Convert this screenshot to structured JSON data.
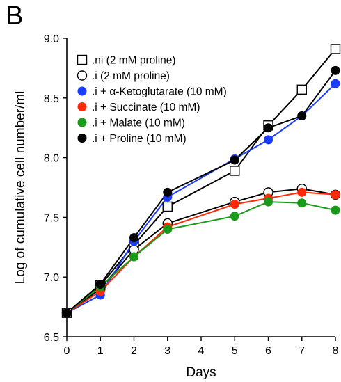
{
  "panel_label": "B",
  "chart_data": {
    "type": "line",
    "title": "",
    "xlabel": "Days",
    "ylabel": "Log of cumulative cell number/ml",
    "xlim": [
      0,
      8
    ],
    "ylim": [
      6.5,
      9.0
    ],
    "xticks": [
      "0",
      "1",
      "2",
      "3",
      "4",
      "5",
      "6",
      "7",
      "8"
    ],
    "yticks": [
      "6.5",
      "7.0",
      "7.5",
      "8.0",
      "8.5",
      "9.0"
    ],
    "grid": false,
    "legend_position": "top-left",
    "series": [
      {
        "name": ".ni (2 mM proline)",
        "marker": "square-open",
        "color": "#000000",
        "line_color": "#000000",
        "x": [
          0,
          1,
          2,
          3,
          5,
          6,
          7,
          8
        ],
        "y": [
          6.7,
          6.93,
          7.27,
          7.59,
          7.89,
          8.27,
          8.57,
          8.91
        ]
      },
      {
        "name": ".i (2 mM proline)",
        "marker": "circle-open",
        "color": "#000000",
        "line_color": "#000000",
        "x": [
          0,
          1,
          2,
          3,
          5,
          6,
          7,
          8
        ],
        "y": [
          6.7,
          6.9,
          7.23,
          7.45,
          7.63,
          7.71,
          7.74,
          7.69
        ]
      },
      {
        "name": ".i + α-Ketoglutarate (10 mM)",
        "marker": "circle",
        "color": "#1a3cff",
        "line_color": "#1a3cff",
        "x": [
          0,
          1,
          2,
          3,
          5,
          6,
          7,
          8
        ],
        "y": [
          6.7,
          6.85,
          7.3,
          7.67,
          7.99,
          8.15,
          8.35,
          8.62
        ]
      },
      {
        "name": ".i + Succinate (10 mM)",
        "marker": "circle",
        "color": "#ff2a0a",
        "line_color": "#ff2a0a",
        "x": [
          0,
          1,
          2,
          3,
          5,
          6,
          7,
          8
        ],
        "y": [
          6.7,
          6.88,
          7.17,
          7.42,
          7.61,
          7.66,
          7.71,
          7.69
        ]
      },
      {
        "name": ".i + Malate (10 mM)",
        "marker": "circle",
        "color": "#1a9a1a",
        "line_color": "#1a9a1a",
        "x": [
          0,
          1,
          2,
          3,
          5,
          6,
          7,
          8
        ],
        "y": [
          6.7,
          6.92,
          7.17,
          7.4,
          7.51,
          7.63,
          7.62,
          7.56
        ]
      },
      {
        "name": ".i + Proline (10 mM)",
        "marker": "circle",
        "color": "#000000",
        "line_color": "#000000",
        "x": [
          0,
          1,
          2,
          3,
          5,
          6,
          7,
          8
        ],
        "y": [
          6.7,
          6.94,
          7.33,
          7.71,
          7.98,
          8.25,
          8.35,
          8.73
        ]
      }
    ]
  }
}
